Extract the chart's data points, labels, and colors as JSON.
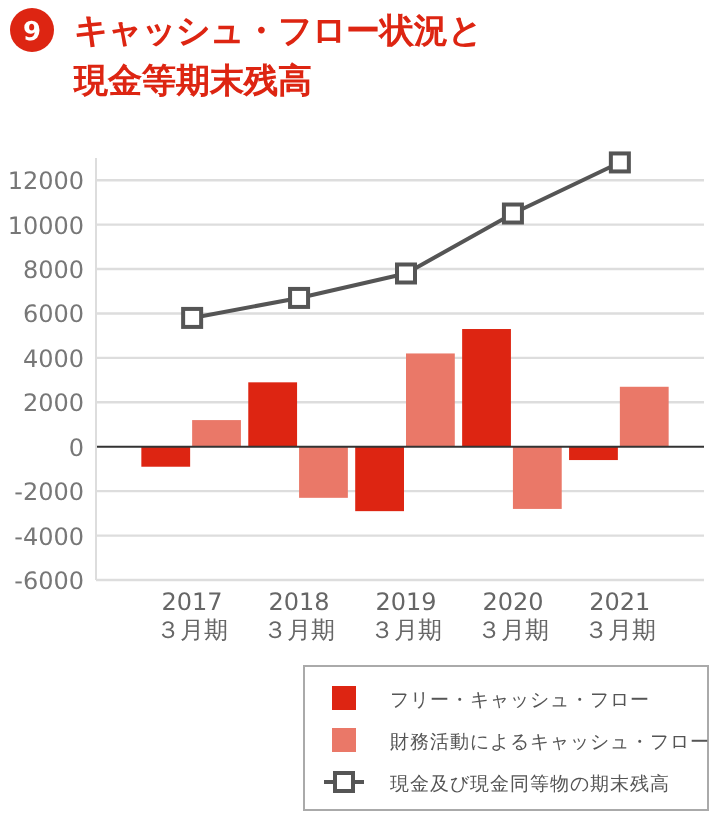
{
  "chart_data": {
    "type": "bar",
    "title": "キャッシュ・フロー状況と現金等期末残高",
    "annotations": [
      "9"
    ],
    "categories": [
      "2017\n３月期",
      "2018\n３月期",
      "2019\n３月期",
      "2020\n３月期",
      "2021\n３月期"
    ],
    "series": [
      {
        "name": "フリー・キャッシュ・フロー",
        "color": "#dd2512",
        "values": [
          -900,
          2900,
          -2900,
          5300,
          -600
        ]
      },
      {
        "name": "財務活動によるキャッシュ・フロー",
        "color": "#ea7868",
        "values": [
          1200,
          -2300,
          4200,
          -2800,
          2700
        ]
      },
      {
        "name": "現金及び現金同等物の期末残高",
        "type": "line",
        "color": "#555555",
        "marker": "square",
        "values": [
          5800,
          6700,
          7800,
          10500,
          12800
        ]
      }
    ],
    "ylim": [
      -6000,
      13000
    ],
    "yticks": [
      -6000,
      -4000,
      -2000,
      0,
      2000,
      4000,
      6000,
      8000,
      10000,
      12000
    ],
    "grid": "y",
    "legend": "bottom"
  }
}
